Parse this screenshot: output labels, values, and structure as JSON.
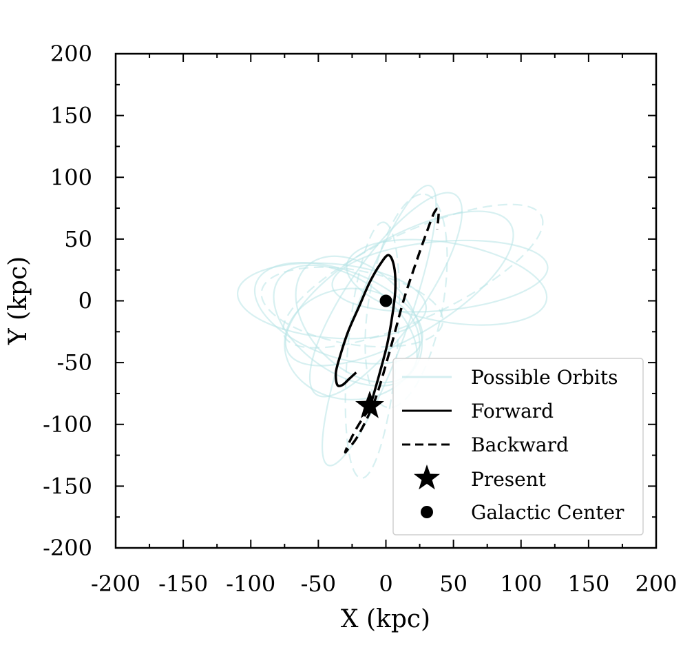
{
  "chart_data": {
    "type": "line",
    "xlabel": "X (kpc)",
    "ylabel": "Y (kpc)",
    "xlim": [
      -200,
      200
    ],
    "ylim": [
      -200,
      200
    ],
    "xticks": [
      -200,
      -150,
      -100,
      -50,
      0,
      50,
      100,
      150,
      200
    ],
    "yticks": [
      -200,
      -150,
      -100,
      -50,
      0,
      50,
      100,
      150,
      200
    ],
    "x_tick_labels": [
      "-200",
      "-150",
      "-100",
      "-50",
      "0",
      "50",
      "100",
      "150",
      "200"
    ],
    "y_tick_labels": [
      "-200",
      "-150",
      "-100",
      "-50",
      "0",
      "50",
      "100",
      "150",
      "200"
    ],
    "grid": false,
    "legend_position": "bottom-right",
    "series": [
      {
        "name": "Possible Orbits",
        "style": "faint",
        "color": "#b7e3e6",
        "ellipses": [
          {
            "cx": -35,
            "cy": -10,
            "a": 65,
            "b": 35,
            "angle": -20
          },
          {
            "cx": -30,
            "cy": -20,
            "a": 60,
            "b": 38,
            "angle": -35
          },
          {
            "cx": -25,
            "cy": -5,
            "a": 68,
            "b": 30,
            "angle": -10
          },
          {
            "cx": -20,
            "cy": -15,
            "a": 55,
            "b": 40,
            "angle": -45
          },
          {
            "cx": 10,
            "cy": 10,
            "a": 95,
            "b": 40,
            "angle": 30
          },
          {
            "cx": 20,
            "cy": 20,
            "a": 105,
            "b": 35,
            "angle": 25
          },
          {
            "cx": 40,
            "cy": 20,
            "a": 80,
            "b": 28,
            "angle": 5
          },
          {
            "cx": -5,
            "cy": -20,
            "a": 110,
            "b": 22,
            "angle": 70
          },
          {
            "cx": 15,
            "cy": 0,
            "a": 80,
            "b": 30,
            "angle": 80
          },
          {
            "cx": -25,
            "cy": -35,
            "a": 50,
            "b": 45,
            "angle": 0
          },
          {
            "cx": 0,
            "cy": 5,
            "a": 90,
            "b": 30,
            "angle": 55
          },
          {
            "cx": -10,
            "cy": -40,
            "a": 95,
            "b": 20,
            "angle": 85
          },
          {
            "cx": 45,
            "cy": 15,
            "a": 75,
            "b": 32,
            "angle": -10
          },
          {
            "cx": -40,
            "cy": 0,
            "a": 70,
            "b": 30,
            "angle": -5
          }
        ]
      },
      {
        "name": "Forward",
        "style": "solid",
        "color": "#000000",
        "x": [
          -12,
          -5,
          1,
          5,
          7,
          6,
          2,
          -4,
          -12,
          -20,
          -28,
          -34,
          -37,
          -36,
          -32,
          -27,
          -22
        ],
        "y": [
          -87,
          -60,
          -35,
          -10,
          10,
          28,
          37,
          30,
          15,
          -5,
          -25,
          -45,
          -58,
          -68,
          -68,
          -63,
          -58
        ]
      },
      {
        "name": "Backward",
        "style": "dashed",
        "color": "#000000",
        "x": [
          -12,
          -20,
          -26,
          -30,
          -28,
          -20,
          -8,
          3,
          13,
          22,
          30,
          36,
          39,
          38
        ],
        "y": [
          -87,
          -100,
          -112,
          -122,
          -120,
          -108,
          -80,
          -40,
          0,
          30,
          55,
          72,
          73,
          58
        ]
      },
      {
        "name": "Present",
        "marker": "star",
        "color": "#000000",
        "x": [
          -12
        ],
        "y": [
          -85
        ]
      },
      {
        "name": "Galactic Center",
        "marker": "circle",
        "color": "#000000",
        "x": [
          0
        ],
        "y": [
          0
        ]
      }
    ]
  }
}
